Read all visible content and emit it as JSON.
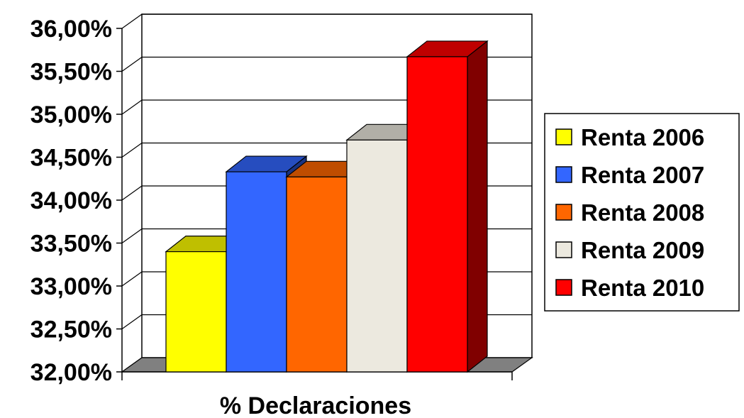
{
  "chart_data": {
    "type": "bar",
    "title": "",
    "xlabel": "% Declaraciones",
    "ylabel": "",
    "categories": [
      "% Declaraciones"
    ],
    "ylim": [
      32.0,
      36.0
    ],
    "yticks": [
      "32,00%",
      "32,50%",
      "33,00%",
      "33,50%",
      "34,00%",
      "34,50%",
      "35,00%",
      "35,50%",
      "36,00%"
    ],
    "grid": true,
    "three_d": true,
    "legend_position": "right",
    "series": [
      {
        "name": "Renta 2006",
        "values": [
          33.4
        ],
        "color": "#ffff00"
      },
      {
        "name": "Renta 2007",
        "values": [
          34.33
        ],
        "color": "#3366ff"
      },
      {
        "name": "Renta 2008",
        "values": [
          34.27
        ],
        "color": "#ff6600"
      },
      {
        "name": "Renta 2009",
        "values": [
          34.7
        ],
        "color": "#ece9df"
      },
      {
        "name": "Renta 2010",
        "values": [
          35.67
        ],
        "color": "#ff0000"
      }
    ]
  }
}
